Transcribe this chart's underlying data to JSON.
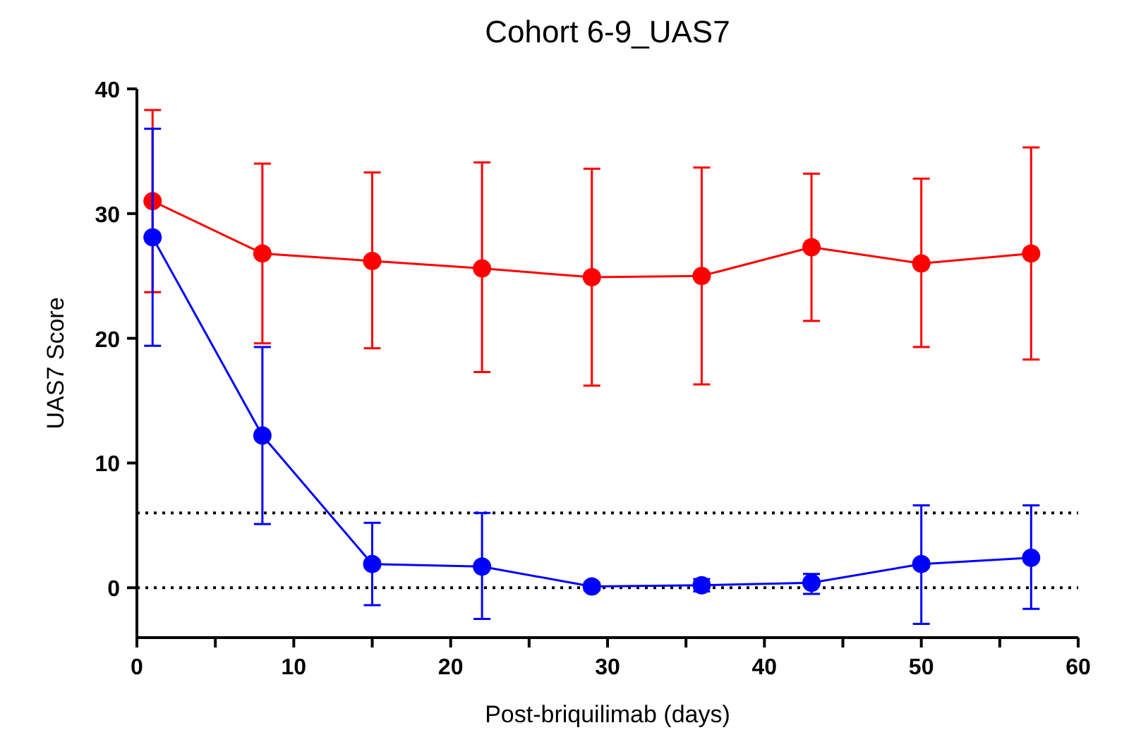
{
  "chart_data": {
    "type": "line",
    "title": "Cohort 6-9_UAS7",
    "xlabel": "Post-briquilimab (days)",
    "ylabel": "UAS7 Score",
    "x": [
      1,
      8,
      15,
      22,
      29,
      36,
      43,
      50,
      57
    ],
    "series": [
      {
        "color": "#ff0000",
        "values": [
          31.0,
          26.8,
          26.2,
          25.6,
          24.9,
          25.0,
          27.3,
          26.0,
          26.8
        ],
        "errors": [
          [
            23.7,
            38.3
          ],
          [
            19.6,
            34.0
          ],
          [
            19.2,
            33.3
          ],
          [
            17.3,
            34.1
          ],
          [
            16.2,
            33.6
          ],
          [
            16.3,
            33.7
          ],
          [
            21.4,
            33.2
          ],
          [
            19.3,
            32.8
          ],
          [
            18.3,
            35.3
          ]
        ]
      },
      {
        "color": "#0000ff",
        "values": [
          28.1,
          12.2,
          1.9,
          1.7,
          0.1,
          0.2,
          0.4,
          1.9,
          2.4
        ],
        "errors": [
          [
            19.4,
            36.8
          ],
          [
            5.1,
            19.3
          ],
          [
            -1.4,
            5.2
          ],
          [
            -2.5,
            6.0
          ],
          [
            -0.2,
            0.4
          ],
          [
            -0.3,
            0.7
          ],
          [
            -0.5,
            1.1
          ],
          [
            -2.9,
            6.6
          ],
          [
            -1.7,
            6.6
          ]
        ]
      }
    ],
    "xlim": [
      0,
      60
    ],
    "xticks": [
      0,
      {
        "value": 5,
        "label": null
      },
      10,
      {
        "value": 15,
        "label": null
      },
      20,
      {
        "value": 25,
        "label": null
      },
      30,
      {
        "value": 35,
        "label": null
      },
      40,
      {
        "value": 45,
        "label": null
      },
      50,
      {
        "value": 55,
        "label": null
      },
      60
    ],
    "ylim": [
      -4,
      40
    ],
    "yticks": [
      0,
      10,
      20,
      30,
      40
    ],
    "ref_lines": [
      {
        "axis": "y",
        "value": 0,
        "color": "#000000",
        "line_style": "dotted"
      },
      {
        "axis": "y",
        "value": 6,
        "color": "#000000",
        "line_style": "dotted"
      }
    ],
    "marker": "circle",
    "line_style": "solid",
    "grid": false
  }
}
